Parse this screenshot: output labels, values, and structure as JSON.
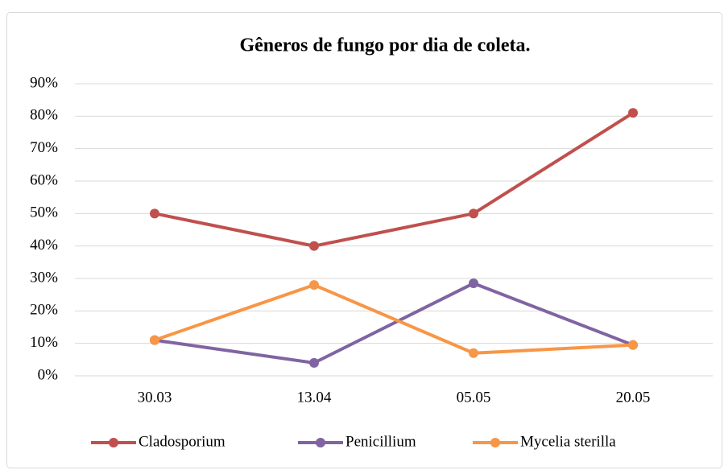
{
  "chart_data": {
    "type": "line",
    "title": "Gêneros de fungo por dia de coleta.",
    "categories": [
      "30.03",
      "13.04",
      "05.05",
      "20.05"
    ],
    "series": [
      {
        "name": "Cladosporium",
        "color": "#c0504d",
        "values": [
          50,
          40,
          50,
          81
        ]
      },
      {
        "name": "Penicillium",
        "color": "#8064a2",
        "values": [
          11,
          4,
          28.5,
          9.5
        ]
      },
      {
        "name": "Mycelia sterilla",
        "color": "#f79646",
        "values": [
          11,
          28,
          7,
          9.5
        ]
      }
    ],
    "ylim": [
      0,
      90
    ],
    "yticks": [
      {
        "value": 0,
        "label": "0%"
      },
      {
        "value": 10,
        "label": "10%"
      },
      {
        "value": 20,
        "label": "20%"
      },
      {
        "value": 30,
        "label": "30%"
      },
      {
        "value": 40,
        "label": "40%"
      },
      {
        "value": 50,
        "label": "50%"
      },
      {
        "value": 60,
        "label": "60%"
      },
      {
        "value": 70,
        "label": "70%"
      },
      {
        "value": 80,
        "label": "80%"
      },
      {
        "value": 90,
        "label": "90%"
      }
    ],
    "grid": true,
    "legend": "bottom"
  }
}
